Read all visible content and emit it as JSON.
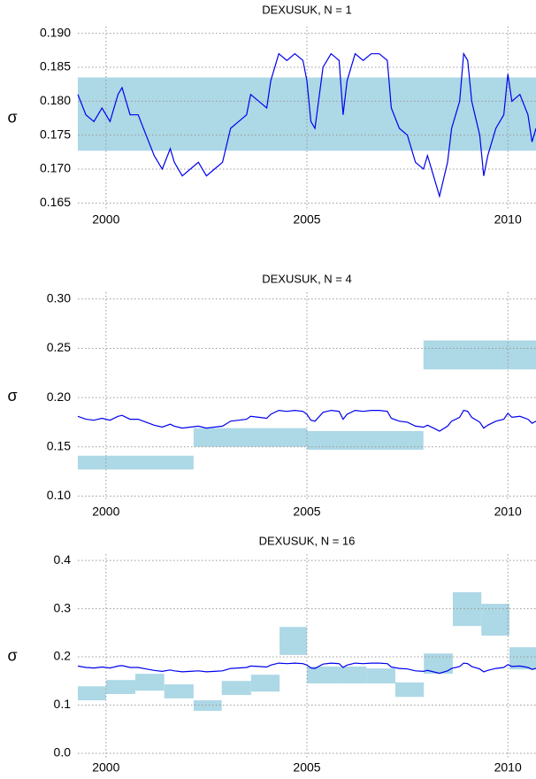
{
  "chart_data": [
    {
      "type": "line",
      "title": "DEXUSUK, N = 1",
      "ylabel": "σ",
      "grid": true,
      "line_color": "#0000ee",
      "band_color": "#add8e6",
      "xlim": [
        1999.3,
        2010.7
      ],
      "xticks": [
        2000,
        2005,
        2010
      ],
      "ylim": [
        0.164,
        0.191
      ],
      "yticks": [
        {
          "value": 0.165,
          "label": "0.165"
        },
        {
          "value": 0.17,
          "label": "0.170"
        },
        {
          "value": 0.175,
          "label": "0.175"
        },
        {
          "value": 0.18,
          "label": "0.180"
        },
        {
          "value": 0.185,
          "label": "0.185"
        },
        {
          "value": 0.19,
          "label": "0.190"
        }
      ],
      "x": [
        1999.3,
        1999.5,
        1999.7,
        1999.9,
        2000.1,
        2000.3,
        2000.4,
        2000.6,
        2000.8,
        2001.0,
        2001.2,
        2001.4,
        2001.6,
        2001.7,
        2001.9,
        2002.1,
        2002.3,
        2002.5,
        2002.7,
        2002.9,
        2003.1,
        2003.3,
        2003.5,
        2003.6,
        2003.8,
        2004.0,
        2004.1,
        2004.3,
        2004.5,
        2004.7,
        2004.9,
        2005.0,
        2005.1,
        2005.2,
        2005.4,
        2005.6,
        2005.8,
        2005.9,
        2006.0,
        2006.2,
        2006.4,
        2006.6,
        2006.8,
        2007.0,
        2007.1,
        2007.3,
        2007.5,
        2007.7,
        2007.9,
        2008.0,
        2008.2,
        2008.3,
        2008.5,
        2008.6,
        2008.8,
        2008.9,
        2009.0,
        2009.1,
        2009.3,
        2009.4,
        2009.5,
        2009.7,
        2009.9,
        2010.0,
        2010.1,
        2010.3,
        2010.5,
        2010.6,
        2010.7
      ],
      "values": [
        0.181,
        0.178,
        0.177,
        0.179,
        0.177,
        0.181,
        0.182,
        0.178,
        0.178,
        0.175,
        0.172,
        0.17,
        0.173,
        0.171,
        0.169,
        0.17,
        0.171,
        0.169,
        0.17,
        0.171,
        0.176,
        0.177,
        0.178,
        0.181,
        0.18,
        0.179,
        0.183,
        0.187,
        0.186,
        0.187,
        0.186,
        0.183,
        0.177,
        0.176,
        0.185,
        0.187,
        0.186,
        0.178,
        0.183,
        0.187,
        0.186,
        0.187,
        0.187,
        0.186,
        0.179,
        0.176,
        0.175,
        0.171,
        0.17,
        0.172,
        0.168,
        0.166,
        0.171,
        0.176,
        0.18,
        0.187,
        0.186,
        0.18,
        0.175,
        0.169,
        0.172,
        0.176,
        0.178,
        0.184,
        0.18,
        0.181,
        0.178,
        0.174,
        0.176
      ],
      "bands": [
        {
          "x": [
            1999.3,
            2010.7
          ],
          "y": [
            0.1727,
            0.1835
          ]
        }
      ]
    },
    {
      "type": "line",
      "title": "DEXUSUK, N = 4",
      "ylabel": "σ",
      "grid": true,
      "xlim": [
        1999.3,
        2010.7
      ],
      "xticks": [
        2000,
        2005,
        2010
      ],
      "ylim": [
        0.095,
        0.307
      ],
      "yticks": [
        {
          "value": 0.1,
          "label": "0.10"
        },
        {
          "value": 0.15,
          "label": "0.15"
        },
        {
          "value": 0.2,
          "label": "0.20"
        },
        {
          "value": 0.25,
          "label": "0.25"
        },
        {
          "value": 0.3,
          "label": "0.30"
        }
      ],
      "bands": [
        {
          "x": [
            1999.3,
            2002.18
          ],
          "y": [
            0.127,
            0.141
          ]
        },
        {
          "x": [
            2002.18,
            2005.0
          ],
          "y": [
            0.15,
            0.169
          ]
        },
        {
          "x": [
            2005.0,
            2007.9
          ],
          "y": [
            0.147,
            0.166
          ]
        },
        {
          "x": [
            2007.9,
            2010.7
          ],
          "y": [
            0.2286,
            0.258
          ]
        }
      ]
    },
    {
      "type": "line",
      "title": "DEXUSUK, N = 16",
      "ylabel": "σ",
      "grid": true,
      "xlim": [
        1999.3,
        2010.7
      ],
      "xticks": [
        2000,
        2005,
        2010
      ],
      "ylim": [
        -0.011,
        0.413
      ],
      "yticks": [
        {
          "value": 0.0,
          "label": "0.0"
        },
        0.1,
        0.2,
        0.3,
        0.4
      ],
      "bands": [
        {
          "x": [
            1999.3,
            2000.0
          ],
          "y": [
            0.11,
            0.139
          ]
        },
        {
          "x": [
            2000.0,
            2000.73
          ],
          "y": [
            0.123,
            0.152
          ]
        },
        {
          "x": [
            2000.73,
            2001.45
          ],
          "y": [
            0.13,
            0.165
          ]
        },
        {
          "x": [
            2001.45,
            2002.18
          ],
          "y": [
            0.114,
            0.143
          ]
        },
        {
          "x": [
            2002.18,
            2002.88
          ],
          "y": [
            0.088,
            0.11
          ]
        },
        {
          "x": [
            2002.88,
            2003.61
          ],
          "y": [
            0.121,
            0.15
          ]
        },
        {
          "x": [
            2003.61,
            2004.32
          ],
          "y": [
            0.128,
            0.163
          ]
        },
        {
          "x": [
            2004.32,
            2005.0
          ],
          "y": [
            0.204,
            0.262
          ]
        },
        {
          "x": [
            2005.0,
            2005.75
          ],
          "y": [
            0.145,
            0.18
          ]
        },
        {
          "x": [
            2005.75,
            2006.48
          ],
          "y": [
            0.145,
            0.18
          ]
        },
        {
          "x": [
            2006.48,
            2007.2
          ],
          "y": [
            0.145,
            0.176
          ]
        },
        {
          "x": [
            2007.2,
            2007.91
          ],
          "y": [
            0.117,
            0.147
          ]
        },
        {
          "x": [
            2007.91,
            2008.63
          ],
          "y": [
            0.165,
            0.207
          ]
        },
        {
          "x": [
            2008.63,
            2009.34
          ],
          "y": [
            0.264,
            0.334
          ]
        },
        {
          "x": [
            2009.34,
            2010.04
          ],
          "y": [
            0.244,
            0.31
          ]
        },
        {
          "x": [
            2010.04,
            2010.7
          ],
          "y": [
            0.174,
            0.22
          ]
        }
      ]
    }
  ]
}
